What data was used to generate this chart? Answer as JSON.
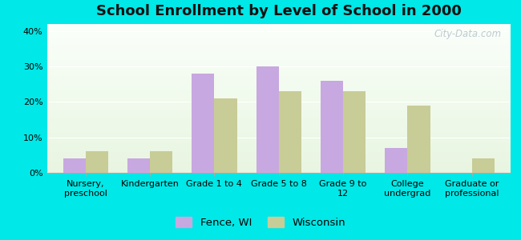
{
  "title": "School Enrollment by Level of School in 2000",
  "categories": [
    "Nursery,\npreschool",
    "Kindergarten",
    "Grade 1 to 4",
    "Grade 5 to 8",
    "Grade 9 to\n12",
    "College\nundergrad",
    "Graduate or\nprofessional"
  ],
  "fence_wi": [
    4,
    4,
    28,
    30,
    26,
    7,
    0
  ],
  "wisconsin": [
    6,
    6,
    21,
    23,
    23,
    19,
    4
  ],
  "fence_color": "#c8a8e0",
  "wisconsin_color": "#c8cc96",
  "background_color": "#00e8e8",
  "ylim": [
    0,
    42
  ],
  "yticks": [
    0,
    10,
    20,
    30,
    40
  ],
  "bar_width": 0.35,
  "legend_labels": [
    "Fence, WI",
    "Wisconsin"
  ],
  "watermark": "City-Data.com",
  "title_fontsize": 13,
  "tick_fontsize": 8,
  "legend_fontsize": 9.5
}
